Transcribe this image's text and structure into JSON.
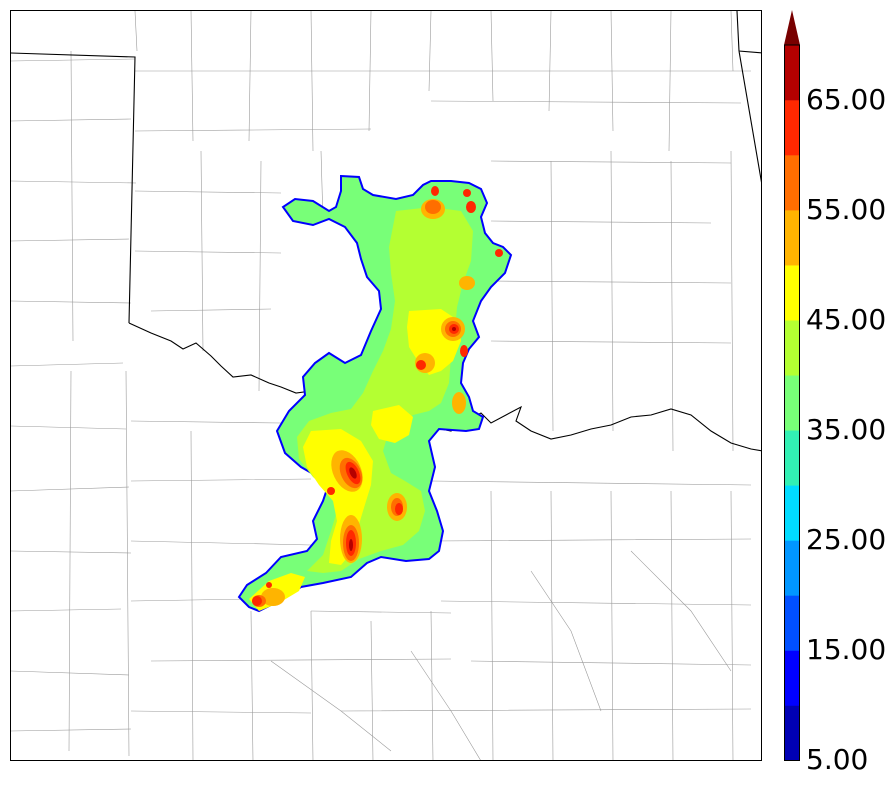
{
  "colorbar": {
    "labels": [
      "65.00",
      "55.00",
      "45.00",
      "35.00",
      "25.00",
      "15.00",
      "5.00"
    ],
    "colors": [
      "#0000b4",
      "#0000ff",
      "#0050ff",
      "#0096ff",
      "#00dcff",
      "#32f0b4",
      "#78ff78",
      "#b4ff32",
      "#ffff00",
      "#ffb400",
      "#ff6e00",
      "#ff2800",
      "#b40000",
      "#780000"
    ]
  },
  "map": {
    "field_colors": {
      "outline": "#0000ff",
      "level_35": "#78ff78",
      "level_40": "#b4ff32",
      "level_45": "#ffff00",
      "level_50": "#ffb400",
      "level_55": "#ff6e00",
      "level_60": "#ff2800",
      "level_65": "#b40000"
    },
    "state_line_color": "#000000",
    "county_line_color": "#9a9a9a"
  }
}
